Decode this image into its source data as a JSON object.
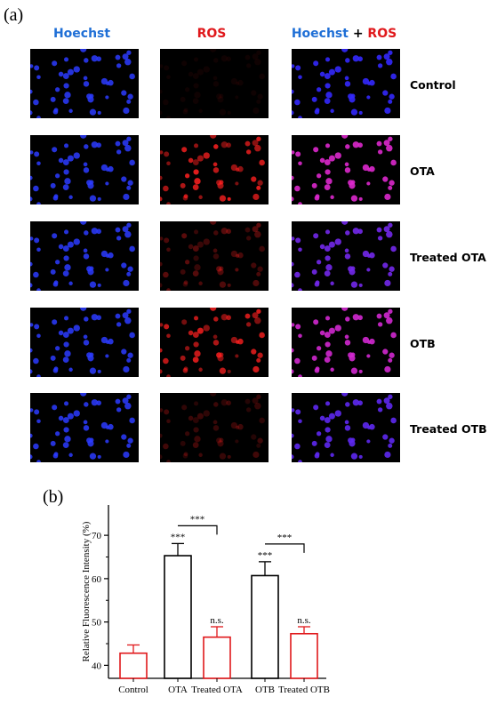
{
  "panel_labels": {
    "a": "(a)",
    "b": "(b)"
  },
  "column_headers": {
    "hoechst": "Hoechst",
    "ros": "ROS",
    "merge_left": "Hoechst",
    "merge_plus": "+",
    "merge_right": "ROS"
  },
  "rows": [
    {
      "label": "Control",
      "ros_level": 0.05
    },
    {
      "label": "OTA",
      "ros_level": 0.85
    },
    {
      "label": "Treated OTA",
      "ros_level": 0.35
    },
    {
      "label": "OTB",
      "ros_level": 0.8
    },
    {
      "label": "Treated OTB",
      "ros_level": 0.25
    }
  ],
  "colors": {
    "hoechst_blue": "#1f6fd6",
    "ros_red": "#e0181b",
    "black_bar": "#000000",
    "red_bar": "#e0181b"
  },
  "chart_data": {
    "type": "bar",
    "categories": [
      "Control",
      "OTA",
      "Treated OTA",
      "OTB",
      "Treated OTB"
    ],
    "values": [
      42.8,
      65.3,
      46.5,
      60.7,
      47.3
    ],
    "errors": [
      1.9,
      2.8,
      2.4,
      3.2,
      1.6
    ],
    "bar_colors": [
      "red",
      "black",
      "red",
      "black",
      "red"
    ],
    "ylabel": "Relative Fluorescence Intensity (%)",
    "xlabel": "",
    "ylim": [
      37,
      77
    ],
    "yticks": [
      40,
      50,
      60,
      70
    ],
    "bar_annotations": [
      "",
      "***",
      "n.s.",
      "***",
      "n.s."
    ],
    "brackets": [
      {
        "from": "OTA",
        "to": "Treated OTA",
        "label": "***"
      },
      {
        "from": "OTB",
        "to": "Treated OTB",
        "label": "***"
      }
    ]
  }
}
